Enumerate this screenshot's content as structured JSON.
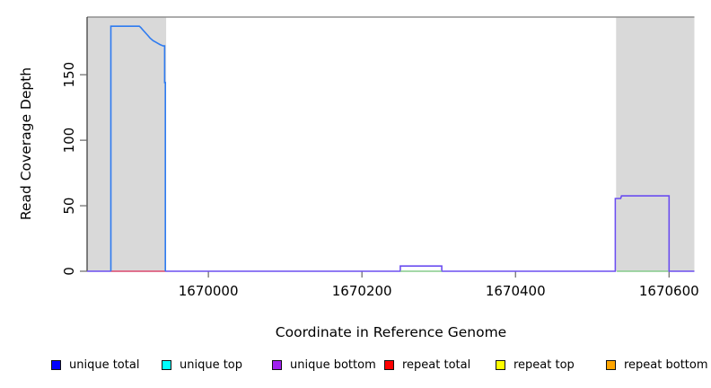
{
  "chart_data": {
    "type": "line",
    "title": "",
    "xlabel": "Coordinate in Reference Genome",
    "ylabel": "Read Coverage Depth",
    "xlim": [
      1669842,
      1670633
    ],
    "ylim": [
      0,
      194
    ],
    "grid": false,
    "legend_position": "bottom",
    "x_ticks": [
      {
        "value": 1670000,
        "label": "1670000"
      },
      {
        "value": 1670200,
        "label": "1670200"
      },
      {
        "value": 1670400,
        "label": "1670400"
      },
      {
        "value": 1670600,
        "label": "1670600"
      }
    ],
    "y_ticks": [
      {
        "value": 0,
        "label": "0"
      },
      {
        "value": 50,
        "label": "50"
      },
      {
        "value": 100,
        "label": "100"
      },
      {
        "value": 150,
        "label": "150"
      }
    ],
    "shaded_regions": [
      {
        "name": "repeat-region-left",
        "x0": 1669842,
        "x1": 1669945,
        "fill": "#d9d9d9"
      },
      {
        "name": "repeat-region-right",
        "x0": 1670531,
        "x1": 1670633,
        "fill": "#d9d9d9"
      }
    ],
    "series": [
      {
        "name": "unique bottom",
        "color": "#6b4ef0",
        "width": 1.6,
        "points": [
          [
            1669842,
            0
          ],
          [
            1670250,
            0
          ],
          [
            1670250,
            4
          ],
          [
            1670304,
            4
          ],
          [
            1670304,
            0
          ],
          [
            1670530,
            0
          ],
          [
            1670530,
            55.5
          ],
          [
            1670537,
            55.5
          ],
          [
            1670538,
            57.5
          ],
          [
            1670600,
            57.5
          ],
          [
            1670600,
            0
          ],
          [
            1670633,
            0
          ]
        ]
      },
      {
        "name": "repeat total",
        "color": "#f2626e",
        "width": 1.6,
        "points": [
          [
            1669873,
            0
          ],
          [
            1669944,
            0
          ]
        ]
      },
      {
        "name": "baseline green mid",
        "color": "#86cc8c",
        "width": 1.6,
        "points": [
          [
            1670250,
            0
          ],
          [
            1670304,
            0
          ]
        ]
      },
      {
        "name": "baseline green right",
        "color": "#86cc8c",
        "width": 1.6,
        "points": [
          [
            1670532,
            0
          ],
          [
            1670599,
            0
          ]
        ]
      },
      {
        "name": "unique total",
        "color": "#2e7bf0",
        "width": 1.6,
        "points": [
          [
            1669873,
            0
          ],
          [
            1669873,
            187
          ],
          [
            1669910,
            187
          ],
          [
            1669912,
            186
          ],
          [
            1669915,
            184
          ],
          [
            1669918,
            182
          ],
          [
            1669921,
            180
          ],
          [
            1669924,
            178
          ],
          [
            1669928,
            176
          ],
          [
            1669931,
            175
          ],
          [
            1669934,
            174
          ],
          [
            1669937,
            173
          ],
          [
            1669941,
            172
          ],
          [
            1669943,
            172
          ],
          [
            1669943,
            144
          ],
          [
            1669944,
            144
          ],
          [
            1669944,
            0
          ]
        ]
      }
    ]
  },
  "legend": {
    "swatch_border": "#111111",
    "items": [
      {
        "label": "unique total",
        "color": "#0000ff"
      },
      {
        "label": "unique top",
        "color": "#00ffff"
      },
      {
        "label": "unique bottom",
        "color": "#a020f0"
      },
      {
        "label": "repeat total",
        "color": "#ff0000"
      },
      {
        "label": "repeat top",
        "color": "#ffff00"
      },
      {
        "label": "repeat bottom",
        "color": "#ffa500"
      }
    ]
  },
  "colors": {
    "plot_border": "#909090",
    "axis_line": "#333333",
    "tick": "#666666",
    "text": "#000000",
    "background": "#ffffff"
  }
}
